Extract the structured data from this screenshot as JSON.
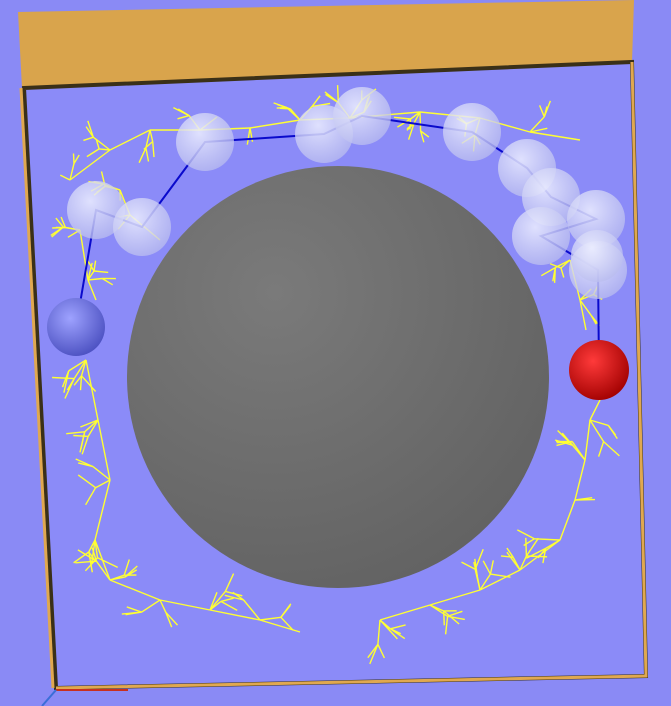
{
  "scene": {
    "type": "3d-motion-planning-visualization",
    "background_color": "#8a8af5",
    "box_top_color": "#d9a44c",
    "box_rim_color": "#e0a850",
    "floor_color": "#8b8bf8",
    "obstacle_color": "#6b6b6b",
    "tree_edge_color": "#ffff33",
    "path_color": "#0a0acc",
    "start_color": "#6f74e6",
    "goal_color": "#e00000",
    "waypoint_color": "#d8daf4",
    "waypoint_count": 13,
    "icons": [
      "obstacle-sphere",
      "start-sphere",
      "goal-sphere",
      "waypoint-sphere",
      "search-tree",
      "solution-path"
    ]
  }
}
